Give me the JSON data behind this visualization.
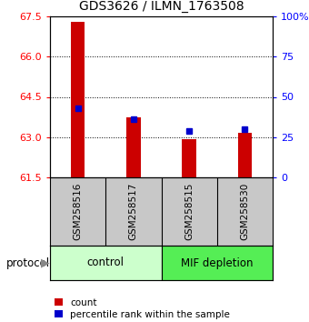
{
  "title": "GDS3626 / ILMN_1763508",
  "samples": [
    "GSM258516",
    "GSM258517",
    "GSM258515",
    "GSM258530"
  ],
  "count_values": [
    67.3,
    63.75,
    62.93,
    63.15
  ],
  "percentile_values": [
    43,
    36,
    29,
    30
  ],
  "y_min": 61.5,
  "y_max": 67.5,
  "y_ticks": [
    61.5,
    63.0,
    64.5,
    66.0,
    67.5
  ],
  "y_right_ticks": [
    0,
    25,
    50,
    75,
    100
  ],
  "bar_color": "#cc0000",
  "percentile_color": "#0000cc",
  "control_color": "#ccffcc",
  "mif_color": "#55ee55",
  "sample_bg": "#c8c8c8",
  "label_count": "count",
  "label_percentile": "percentile rank within the sample",
  "group_label": "protocol",
  "bar_width": 0.25
}
